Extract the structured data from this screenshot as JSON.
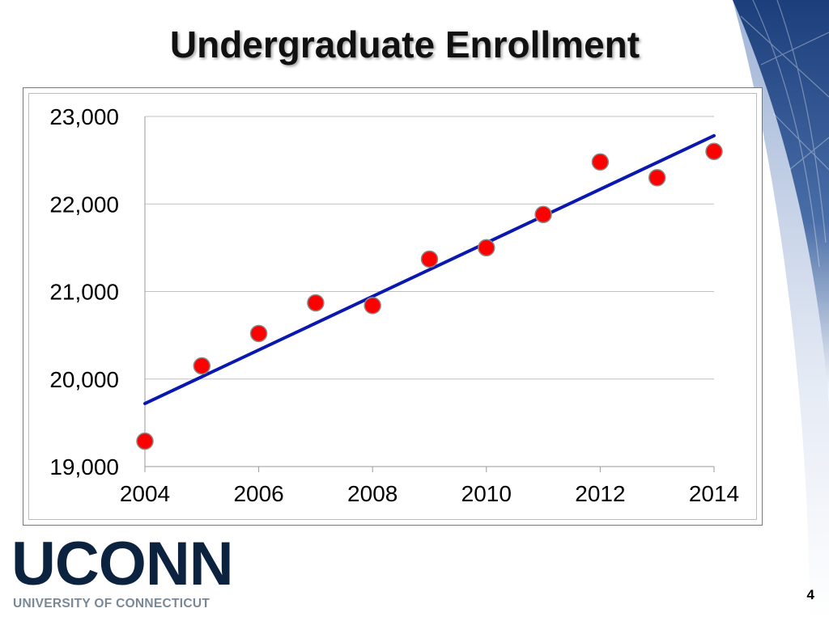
{
  "slide": {
    "title": "Undergraduate Enrollment",
    "page_number": "4"
  },
  "logo": {
    "wordmark": "UCONN",
    "subtitle": "UNIVERSITY OF CONNECTICUT",
    "color": "#0c2340"
  },
  "colors": {
    "marker_fill": "#ff0000",
    "trendline": "#0a18b0",
    "gridline": "#c0c0c0",
    "accent_blue": "#1c3f7c"
  },
  "chart_data": {
    "type": "scatter",
    "title": "",
    "xlabel": "",
    "ylabel": "",
    "x": [
      2004,
      2005,
      2006,
      2007,
      2008,
      2009,
      2010,
      2011,
      2012,
      2013,
      2014
    ],
    "y": [
      19290,
      20150,
      20520,
      20870,
      20840,
      21370,
      21500,
      21880,
      22480,
      22300,
      22600
    ],
    "trendline": {
      "type": "linear",
      "x": [
        2004,
        2014
      ],
      "y": [
        19720,
        22780
      ]
    },
    "xlim": [
      2004,
      2014
    ],
    "ylim": [
      19000,
      23000
    ],
    "xticks": [
      "2004",
      "2006",
      "2008",
      "2010",
      "2012",
      "2014"
    ],
    "yticks": [
      "19,000",
      "20,000",
      "21,000",
      "22,000",
      "23,000"
    ],
    "grid": "horizontal",
    "legend": "none"
  }
}
